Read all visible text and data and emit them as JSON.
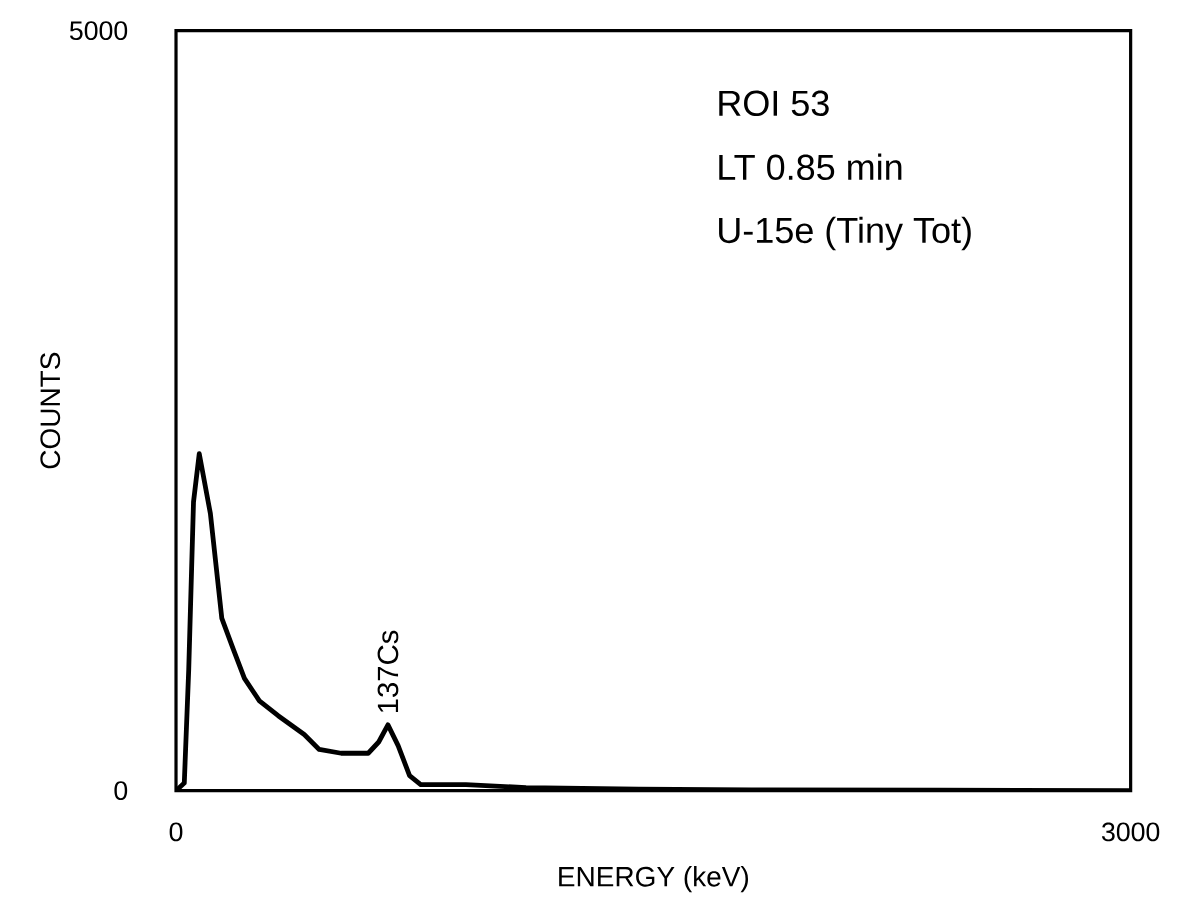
{
  "chart_data": {
    "type": "line",
    "xlabel": "ENERGY (keV)",
    "ylabel": "COUNTS",
    "x": [
      0,
      26,
      40,
      55,
      73,
      108,
      144,
      179,
      215,
      262,
      321,
      403,
      450,
      519,
      604,
      637,
      666,
      698,
      734,
      769,
      911,
      1100,
      1454,
      1808,
      2400,
      3000
    ],
    "series": [
      {
        "color": "#000000",
        "values": [
          0,
          50,
          800,
          1900,
          2217,
          1823,
          1133,
          936,
          739,
          591,
          493,
          369,
          271,
          246,
          246,
          320,
          433,
          296,
          99,
          39,
          39,
          20,
          10,
          5,
          3,
          0
        ]
      }
    ],
    "xlim": [
      0,
      3000
    ],
    "ylim": [
      0,
      5000
    ],
    "xticks": [
      0,
      3000
    ],
    "yticks": [
      0,
      5000
    ],
    "annotations": [
      "ROI 53",
      "LT 0.85 min",
      "U-15e (Tiny Tot)",
      {
        "text": "137Cs",
        "x": 666,
        "y": 433
      }
    ]
  }
}
